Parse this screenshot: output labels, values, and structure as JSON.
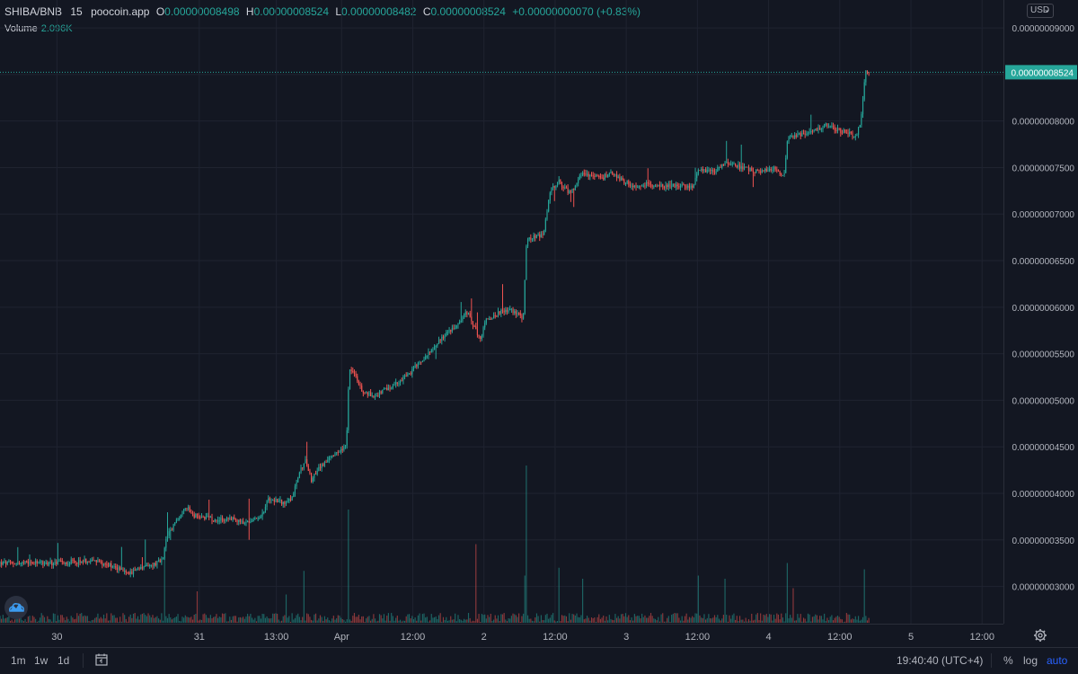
{
  "legend": {
    "symbol": "SHIBA/BNB",
    "interval": "15",
    "source": "poocoin.app",
    "open_label": "O",
    "open": "0.00000008498",
    "high_label": "H",
    "high": "0.00000008524",
    "low_label": "L",
    "low": "0.00000008482",
    "close_label": "C",
    "close": "0.00000008524",
    "change": "+0.00000000070 (+0.83%)"
  },
  "volume": {
    "label": "Volume",
    "value": "2.096K"
  },
  "currency": "USD",
  "price_tag": "0.00000008524",
  "bottom_bar": {
    "timeframes": [
      "1m",
      "1w",
      "1d"
    ],
    "clock": "19:40:40 (UTC+4)",
    "percent": "%",
    "log": "log",
    "auto": "auto"
  },
  "colors": {
    "up": "#26a69a",
    "down": "#ef5350",
    "background": "#131722",
    "grid": "#1f2330"
  },
  "chart_data": {
    "type": "candlestick",
    "title": "",
    "interval_minutes": 15,
    "price_ticks": [
      "0.00000009000",
      "0.00000008500",
      "0.00000008000",
      "0.00000007500",
      "0.00000007000",
      "0.00000006500",
      "0.00000006000",
      "0.00000005500",
      "0.00000005000",
      "0.00000004500",
      "0.00000004000",
      "0.00000003500",
      "0.00000003000"
    ],
    "tick_values": [
      9.0,
      8.5,
      8.0,
      7.5,
      7.0,
      6.5,
      6.0,
      5.5,
      5.0,
      4.5,
      4.0,
      3.5,
      3.0
    ],
    "value_unit": "1e-8",
    "ylim": [
      2.6,
      9.3
    ],
    "time_ticks": [
      {
        "label": "30",
        "x": 0.4
      },
      {
        "label": "31",
        "x": 24.4
      },
      {
        "label": "13:00",
        "x": 37.4
      },
      {
        "label": "Apr",
        "x": 48.4
      },
      {
        "label": "12:00",
        "x": 60.4
      },
      {
        "label": "2",
        "x": 72.4
      },
      {
        "label": "12:00",
        "x": 84.4
      },
      {
        "label": "3",
        "x": 96.4
      },
      {
        "label": "12:00",
        "x": 108.4
      },
      {
        "label": "4",
        "x": 120.4
      },
      {
        "label": "12:00",
        "x": 132.4
      },
      {
        "label": "5",
        "x": 144.4
      },
      {
        "label": "12:00",
        "x": 156.4
      }
    ],
    "xlim": [
      -9.2,
      160
    ],
    "x_unit": "hours",
    "path_anchors": [
      {
        "t": 0,
        "p": 3.25
      },
      {
        "t": 6,
        "p": 3.28
      },
      {
        "t": 10,
        "p": 3.22
      },
      {
        "t": 12.5,
        "p": 3.14
      },
      {
        "t": 16,
        "p": 3.22
      },
      {
        "t": 18.3,
        "p": 3.28
      },
      {
        "t": 18.8,
        "p": 3.52
      },
      {
        "t": 20.5,
        "p": 3.7
      },
      {
        "t": 22.3,
        "p": 3.86
      },
      {
        "t": 23.5,
        "p": 3.76
      },
      {
        "t": 27,
        "p": 3.72
      },
      {
        "t": 30.5,
        "p": 3.72
      },
      {
        "t": 33,
        "p": 3.68
      },
      {
        "t": 35.3,
        "p": 3.8
      },
      {
        "t": 36,
        "p": 3.95
      },
      {
        "t": 38.5,
        "p": 3.9
      },
      {
        "t": 40,
        "p": 3.95
      },
      {
        "t": 41.2,
        "p": 4.2
      },
      {
        "t": 42.3,
        "p": 4.38
      },
      {
        "t": 43.3,
        "p": 4.15
      },
      {
        "t": 45,
        "p": 4.3
      },
      {
        "t": 48,
        "p": 4.45
      },
      {
        "t": 49.2,
        "p": 4.5
      },
      {
        "t": 49.7,
        "p": 5.35
      },
      {
        "t": 50.4,
        "p": 5.3
      },
      {
        "t": 52,
        "p": 5.08
      },
      {
        "t": 54,
        "p": 5.05
      },
      {
        "t": 57,
        "p": 5.15
      },
      {
        "t": 60,
        "p": 5.3
      },
      {
        "t": 63,
        "p": 5.5
      },
      {
        "t": 66,
        "p": 5.72
      },
      {
        "t": 68,
        "p": 5.8
      },
      {
        "t": 69.5,
        "p": 5.95
      },
      {
        "t": 70.5,
        "p": 5.82
      },
      {
        "t": 71.8,
        "p": 5.65
      },
      {
        "t": 72.6,
        "p": 5.85
      },
      {
        "t": 75,
        "p": 5.95
      },
      {
        "t": 77,
        "p": 5.98
      },
      {
        "t": 79,
        "p": 5.88
      },
      {
        "t": 79.6,
        "p": 6.7
      },
      {
        "t": 80.5,
        "p": 6.75
      },
      {
        "t": 82.5,
        "p": 6.78
      },
      {
        "t": 83.5,
        "p": 7.25
      },
      {
        "t": 85,
        "p": 7.35
      },
      {
        "t": 87,
        "p": 7.22
      },
      {
        "t": 89,
        "p": 7.45
      },
      {
        "t": 92,
        "p": 7.38
      },
      {
        "t": 94,
        "p": 7.45
      },
      {
        "t": 96,
        "p": 7.35
      },
      {
        "t": 98,
        "p": 7.3
      },
      {
        "t": 100,
        "p": 7.32
      },
      {
        "t": 104,
        "p": 7.3
      },
      {
        "t": 107.6,
        "p": 7.3
      },
      {
        "t": 108.5,
        "p": 7.5
      },
      {
        "t": 111,
        "p": 7.45
      },
      {
        "t": 113,
        "p": 7.55
      },
      {
        "t": 116,
        "p": 7.5
      },
      {
        "t": 119,
        "p": 7.45
      },
      {
        "t": 121.5,
        "p": 7.5
      },
      {
        "t": 123,
        "p": 7.4
      },
      {
        "t": 123.6,
        "p": 7.82
      },
      {
        "t": 126,
        "p": 7.85
      },
      {
        "t": 128,
        "p": 7.9
      },
      {
        "t": 130,
        "p": 7.95
      },
      {
        "t": 132,
        "p": 7.9
      },
      {
        "t": 134,
        "p": 7.88
      },
      {
        "t": 135,
        "p": 7.82
      },
      {
        "t": 135.8,
        "p": 7.95
      },
      {
        "t": 136.4,
        "p": 8.3
      },
      {
        "t": 136.8,
        "p": 8.55
      },
      {
        "t": 137.3,
        "p": 8.5
      }
    ],
    "volume_spikes": [
      {
        "t": 18.5,
        "h": 0.42
      },
      {
        "t": 24,
        "h": 0.2
      },
      {
        "t": 39,
        "h": 0.18
      },
      {
        "t": 42,
        "h": 0.33
      },
      {
        "t": 49.6,
        "h": 0.72
      },
      {
        "t": 71,
        "h": 0.5
      },
      {
        "t": 79.5,
        "h": 1.0
      },
      {
        "t": 79.2,
        "h": 0.3
      },
      {
        "t": 85,
        "h": 0.35
      },
      {
        "t": 89,
        "h": 0.28
      },
      {
        "t": 108.5,
        "h": 0.3
      },
      {
        "t": 113,
        "h": 0.28
      },
      {
        "t": 123.5,
        "h": 0.38
      },
      {
        "t": 124.5,
        "h": 0.22
      },
      {
        "t": 136.6,
        "h": 0.34
      }
    ]
  }
}
